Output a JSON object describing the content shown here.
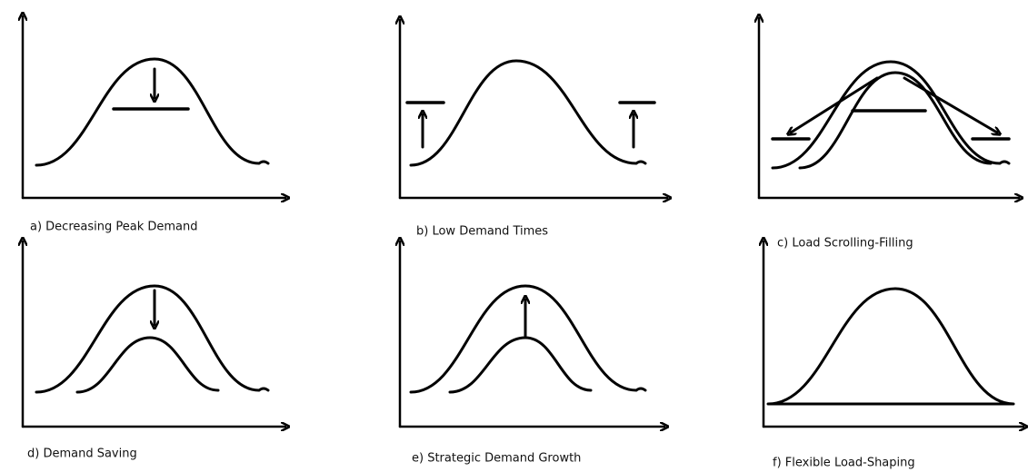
{
  "panels": [
    {
      "caption": "a) Decreasing Peak Demand"
    },
    {
      "caption": "b) Low Demand Times"
    },
    {
      "caption": "c) Load Scrolling-Filling"
    },
    {
      "caption": "d) Demand Saving"
    },
    {
      "caption": "e) Strategic Demand Growth"
    },
    {
      "caption": "f) Flexible Load-Shaping"
    }
  ]
}
